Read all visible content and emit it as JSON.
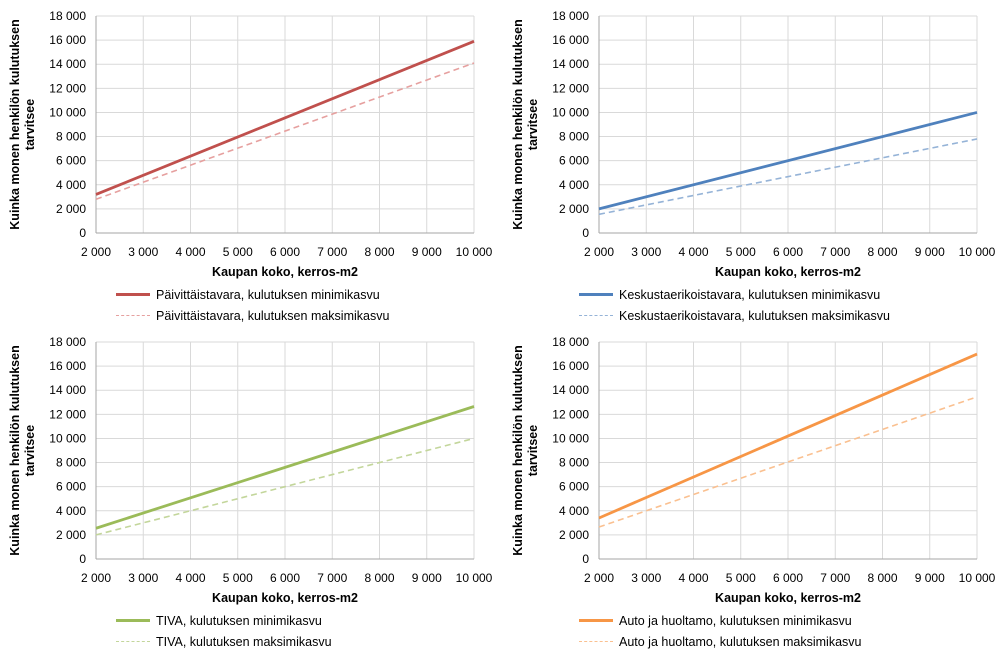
{
  "chart_data": [
    {
      "type": "line",
      "xlabel": "Kaupan koko, kerros-m2",
      "ylabel": "Kuinka monen henkilön kulutuksen tarvitsee",
      "xlim": [
        2000,
        10000
      ],
      "ylim": [
        0,
        18000
      ],
      "x_ticks": [
        "2 000",
        "3 000",
        "4 000",
        "5 000",
        "6 000",
        "7 000",
        "8 000",
        "9 000",
        "10 000"
      ],
      "y_ticks": [
        "0",
        "2 000",
        "4 000",
        "6 000",
        "8 000",
        "10 000",
        "12 000",
        "14 000",
        "16 000",
        "18 000"
      ],
      "grid": true,
      "legend_position": "bottom",
      "series": [
        {
          "name": "Päivittäistavara, kulutuksen minimikasvu",
          "color": "#c0504d",
          "style": "solid",
          "x": [
            2000,
            10000
          ],
          "values": [
            3200,
            15900
          ]
        },
        {
          "name": "Päivittäistavara, kulutuksen maksimikasvu",
          "color": "#e6a09f",
          "style": "dashed",
          "x": [
            2000,
            10000
          ],
          "values": [
            2800,
            14100
          ]
        }
      ]
    },
    {
      "type": "line",
      "xlabel": "Kaupan koko, kerros-m2",
      "ylabel": "Kuinka monen henkilön kulutuksen tarvitsee",
      "xlim": [
        2000,
        10000
      ],
      "ylim": [
        0,
        18000
      ],
      "x_ticks": [
        "2 000",
        "3 000",
        "4 000",
        "5 000",
        "6 000",
        "7 000",
        "8 000",
        "9 000",
        "10 000"
      ],
      "y_ticks": [
        "0",
        "2 000",
        "4 000",
        "6 000",
        "8 000",
        "10 000",
        "12 000",
        "14 000",
        "16 000",
        "18 000"
      ],
      "grid": true,
      "legend_position": "bottom",
      "series": [
        {
          "name": "Keskustaerikoistavara, kulutuksen minimikasvu",
          "color": "#4f81bd",
          "style": "solid",
          "x": [
            2000,
            10000
          ],
          "values": [
            2000,
            10000
          ]
        },
        {
          "name": "Keskustaerikoistavara, kulutuksen maksimikasvu",
          "color": "#95b3d7",
          "style": "dashed",
          "x": [
            2000,
            10000
          ],
          "values": [
            1550,
            7800
          ]
        }
      ]
    },
    {
      "type": "line",
      "xlabel": "Kaupan koko, kerros-m2",
      "ylabel": "Kuinka monen henkilön kulutuksen tarvitsee",
      "xlim": [
        2000,
        10000
      ],
      "ylim": [
        0,
        18000
      ],
      "x_ticks": [
        "2 000",
        "3 000",
        "4 000",
        "5 000",
        "6 000",
        "7 000",
        "8 000",
        "9 000",
        "10 000"
      ],
      "y_ticks": [
        "0",
        "2 000",
        "4 000",
        "6 000",
        "8 000",
        "10 000",
        "12 000",
        "14 000",
        "16 000",
        "18 000"
      ],
      "grid": true,
      "legend_position": "bottom",
      "series": [
        {
          "name": "TIVA, kulutuksen minimikasvu",
          "color": "#9bbb59",
          "style": "solid",
          "x": [
            2000,
            10000
          ],
          "values": [
            2550,
            12650
          ]
        },
        {
          "name": "TIVA, kulutuksen maksimikasvu",
          "color": "#c3d69b",
          "style": "dashed",
          "x": [
            2000,
            10000
          ],
          "values": [
            2000,
            10000
          ]
        }
      ]
    },
    {
      "type": "line",
      "xlabel": "Kaupan koko, kerros-m2",
      "ylabel": "Kuinka monen henkilön kulutuksen tarvitsee",
      "xlim": [
        2000,
        10000
      ],
      "ylim": [
        0,
        18000
      ],
      "x_ticks": [
        "2 000",
        "3 000",
        "4 000",
        "5 000",
        "6 000",
        "7 000",
        "8 000",
        "9 000",
        "10 000"
      ],
      "y_ticks": [
        "0",
        "2 000",
        "4 000",
        "6 000",
        "8 000",
        "10 000",
        "12 000",
        "14 000",
        "16 000",
        "18 000"
      ],
      "grid": true,
      "legend_position": "bottom",
      "series": [
        {
          "name": "Auto ja huoltamo, kulutuksen minimikasvu",
          "color": "#f79646",
          "style": "solid",
          "x": [
            2000,
            10000
          ],
          "values": [
            3400,
            17000
          ]
        },
        {
          "name": "Auto ja huoltamo, kulutuksen maksimikasvu",
          "color": "#fac090",
          "style": "dashed",
          "x": [
            2000,
            10000
          ],
          "values": [
            2650,
            13450
          ]
        }
      ]
    }
  ]
}
